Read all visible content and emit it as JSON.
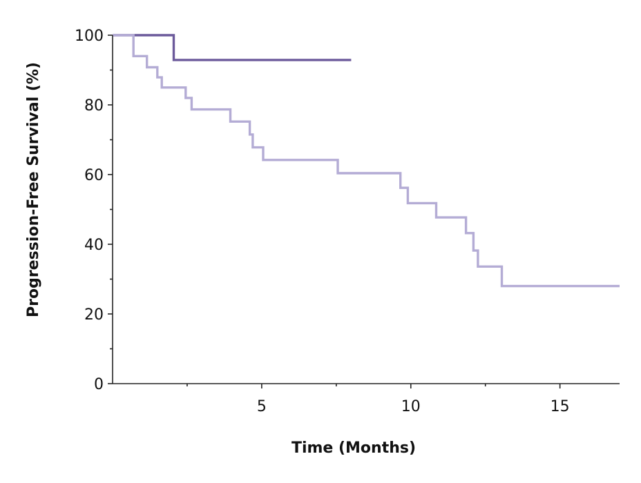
{
  "chart_data": {
    "type": "line",
    "step": true,
    "title": "",
    "xlabel": "Time (Months)",
    "ylabel": "Progression-Free Survival (%)",
    "xlim": [
      0,
      17
    ],
    "ylim": [
      0,
      100
    ],
    "xticks": [
      5,
      10,
      15
    ],
    "yticks": [
      0,
      20,
      40,
      60,
      80,
      100
    ],
    "grid": false,
    "legend": "none",
    "series": [
      {
        "color": "#6c5a9b",
        "x": [
          0,
          2.05,
          2.05,
          8.0
        ],
        "y": [
          100,
          100,
          92.9,
          92.9
        ]
      },
      {
        "color": "#b4acd5",
        "x": [
          0,
          0.7,
          0.7,
          1.15,
          1.15,
          1.5,
          1.5,
          1.65,
          1.65,
          2.45,
          2.45,
          2.65,
          2.65,
          3.95,
          3.95,
          4.6,
          4.6,
          4.7,
          4.7,
          5.05,
          5.05,
          7.55,
          7.55,
          9.65,
          9.65,
          9.9,
          9.9,
          10.85,
          10.85,
          11.85,
          11.85,
          12.1,
          12.1,
          12.25,
          12.25,
          13.05,
          13.05,
          17.0
        ],
        "y": [
          100,
          100,
          94,
          94,
          90.8,
          90.8,
          87.9,
          87.9,
          85,
          85,
          82,
          82,
          78.7,
          78.7,
          75.2,
          75.2,
          71.5,
          71.5,
          67.8,
          67.8,
          64.2,
          64.2,
          60.4,
          60.4,
          56.2,
          56.2,
          51.8,
          51.8,
          47.7,
          47.7,
          43.2,
          43.2,
          38.2,
          38.2,
          33.6,
          33.6,
          28,
          28
        ]
      }
    ]
  }
}
